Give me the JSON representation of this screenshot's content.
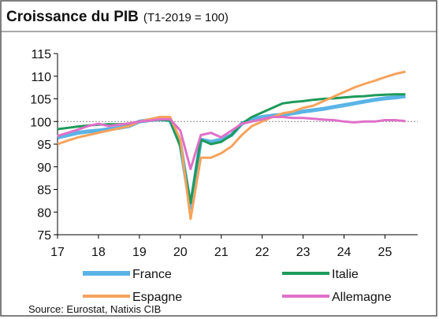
{
  "chart_data": {
    "type": "line",
    "title": "Croissance du PIB",
    "subtitle": "(T1-2019 = 100)",
    "source": "Source: Eurostat, Natixis CIB",
    "x": [
      17,
      17.25,
      17.5,
      17.75,
      18,
      18.25,
      18.5,
      18.75,
      19,
      19.25,
      19.5,
      19.75,
      20,
      20.25,
      20.5,
      20.75,
      21,
      21.25,
      21.5,
      21.75,
      22,
      22.25,
      22.5,
      22.75,
      23,
      23.25,
      23.5,
      23.75,
      24,
      24.25,
      24.5,
      24.75,
      25,
      25.25,
      25.5
    ],
    "series": [
      {
        "name": "France",
        "color": "#5ab4e6",
        "values": [
          96.5,
          97,
          97.5,
          97.8,
          98,
          98.3,
          98.6,
          99,
          100,
          100.3,
          100.5,
          100.3,
          95,
          81,
          96,
          95.5,
          96,
          97,
          99.5,
          100.5,
          101,
          101.3,
          101.5,
          101.8,
          102.2,
          102.5,
          102.8,
          103.2,
          103.6,
          104,
          104.4,
          104.8,
          105.1,
          105.3,
          105.6
        ]
      },
      {
        "name": "Italie",
        "color": "#1e9a5a",
        "values": [
          98.3,
          98.6,
          98.9,
          99.1,
          99.3,
          99.4,
          99.4,
          99.5,
          100,
          100.2,
          100.4,
          100.2,
          94.5,
          82,
          96,
          95,
          95.5,
          97,
          99.5,
          101,
          102,
          103,
          104,
          104.3,
          104.5,
          104.8,
          105,
          105.1,
          105.3,
          105.5,
          105.6,
          105.8,
          105.9,
          106,
          106
        ]
      },
      {
        "name": "Espagne",
        "color": "#f5a35c",
        "values": [
          95,
          95.8,
          96.5,
          97,
          97.5,
          98,
          98.5,
          99,
          100,
          100.5,
          101,
          101,
          96,
          78.5,
          92,
          92,
          93,
          94.5,
          97,
          99,
          100,
          101,
          101.8,
          102.2,
          103,
          103.5,
          104.5,
          105.5,
          106.5,
          107.5,
          108.3,
          109,
          109.8,
          110.5,
          111
        ]
      },
      {
        "name": "Allemagne",
        "color": "#e070c8",
        "values": [
          96.8,
          97.5,
          98.2,
          99,
          99.5,
          99,
          99.3,
          99.6,
          100,
          100.2,
          100.5,
          100.5,
          98,
          89.5,
          97,
          97.5,
          96.5,
          98,
          99.5,
          100,
          100.5,
          101,
          101,
          100.8,
          100.8,
          100.6,
          100.4,
          100.3,
          100,
          99.8,
          100,
          100,
          100.3,
          100.3,
          100.1
        ]
      }
    ],
    "xlim": [
      17,
      25.8
    ],
    "xticks": [
      17,
      18,
      19,
      20,
      21,
      22,
      23,
      24,
      25
    ],
    "ylim": [
      75,
      115
    ],
    "yticks": [
      75,
      80,
      85,
      90,
      95,
      100,
      105,
      110,
      115
    ],
    "baseline": 100,
    "grid": false,
    "legend": "bottom"
  }
}
